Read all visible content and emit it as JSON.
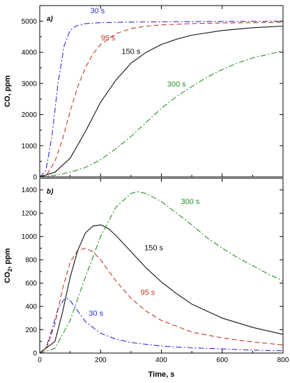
{
  "chart_data": [
    {
      "type": "line",
      "panel_label": "a)",
      "xlabel": "",
      "ylabel": "CO, ppm",
      "xlim": [
        0,
        800
      ],
      "ylim": [
        0,
        5500
      ],
      "x_ticks": [
        0,
        200,
        400,
        600,
        800
      ],
      "y_ticks": [
        0,
        1000,
        2000,
        3000,
        4000,
        5000
      ],
      "grid": false,
      "series": [
        {
          "name": "30 s",
          "color": "#2b2bd4",
          "dash": "dashdot",
          "x": [
            0,
            20,
            40,
            60,
            80,
            100,
            120,
            150,
            200,
            300,
            400,
            600,
            800
          ],
          "y": [
            0,
            200,
            1300,
            3000,
            4200,
            4700,
            4850,
            4920,
            4950,
            4970,
            4980,
            4990,
            5000
          ]
        },
        {
          "name": "95 s",
          "color": "#c0392b",
          "dash": "dashed",
          "x": [
            0,
            25,
            50,
            75,
            100,
            125,
            150,
            175,
            200,
            250,
            300,
            350,
            400,
            500,
            600,
            700,
            800
          ],
          "y": [
            0,
            100,
            500,
            1200,
            2100,
            2900,
            3500,
            3950,
            4250,
            4600,
            4760,
            4840,
            4880,
            4920,
            4940,
            4950,
            4960
          ]
        },
        {
          "name": "150 s",
          "color": "#111111",
          "dash": "solid",
          "x": [
            0,
            50,
            100,
            150,
            200,
            250,
            300,
            350,
            400,
            450,
            500,
            600,
            700,
            800
          ],
          "y": [
            0,
            150,
            600,
            1450,
            2400,
            3100,
            3650,
            4000,
            4250,
            4420,
            4550,
            4700,
            4790,
            4840
          ]
        },
        {
          "name": "300 s",
          "color": "#2a8c2a",
          "dash": "dashdot",
          "x": [
            0,
            50,
            100,
            150,
            200,
            250,
            300,
            350,
            400,
            450,
            500,
            550,
            600,
            650,
            700,
            750,
            800
          ],
          "y": [
            0,
            50,
            150,
            300,
            550,
            900,
            1300,
            1750,
            2200,
            2580,
            2900,
            3200,
            3450,
            3650,
            3820,
            3930,
            4050
          ]
        }
      ],
      "curve_labels": [
        {
          "text": "30 s",
          "x": 190,
          "y": 5250
        },
        {
          "text": "95 s",
          "x": 225,
          "y": 4380
        },
        {
          "text": "150 s",
          "x": 300,
          "y": 3950
        },
        {
          "text": "300 s",
          "x": 450,
          "y": 2900
        }
      ]
    },
    {
      "type": "line",
      "panel_label": "b)",
      "xlabel": "Time, s",
      "ylabel": "CO2, ppm",
      "xlim": [
        0,
        800
      ],
      "ylim": [
        0,
        1500
      ],
      "x_ticks": [
        0,
        200,
        400,
        600,
        800
      ],
      "y_ticks": [
        0,
        200,
        400,
        600,
        800,
        1000,
        1200,
        1400
      ],
      "grid": false,
      "series": [
        {
          "name": "30 s",
          "color": "#2b2bd4",
          "dash": "dashdot",
          "x": [
            0,
            20,
            40,
            60,
            80,
            90,
            100,
            120,
            150,
            200,
            250,
            300,
            400,
            500,
            600,
            700,
            800
          ],
          "y": [
            0,
            40,
            200,
            380,
            460,
            470,
            450,
            380,
            270,
            170,
            120,
            90,
            60,
            45,
            35,
            25,
            20
          ]
        },
        {
          "name": "95 s",
          "color": "#c0392b",
          "dash": "dashed",
          "x": [
            0,
            25,
            50,
            75,
            100,
            125,
            150,
            175,
            200,
            250,
            300,
            350,
            400,
            500,
            600,
            700,
            800
          ],
          "y": [
            0,
            60,
            250,
            550,
            780,
            880,
            900,
            870,
            800,
            620,
            470,
            360,
            280,
            180,
            130,
            95,
            70
          ]
        },
        {
          "name": "150 s",
          "color": "#111111",
          "dash": "solid",
          "x": [
            0,
            50,
            75,
            100,
            125,
            150,
            175,
            200,
            225,
            250,
            300,
            350,
            400,
            450,
            500,
            600,
            700,
            800
          ],
          "y": [
            0,
            100,
            350,
            650,
            880,
            1030,
            1090,
            1100,
            1070,
            1010,
            870,
            730,
            610,
            510,
            420,
            300,
            220,
            160
          ]
        },
        {
          "name": "300 s",
          "color": "#2a8c2a",
          "dash": "dashdot",
          "x": [
            0,
            50,
            100,
            150,
            200,
            250,
            300,
            320,
            350,
            400,
            450,
            500,
            550,
            600,
            650,
            700,
            750,
            800
          ],
          "y": [
            0,
            40,
            280,
            650,
            1000,
            1250,
            1370,
            1385,
            1370,
            1300,
            1200,
            1100,
            990,
            900,
            820,
            750,
            680,
            620
          ]
        }
      ],
      "curve_labels": [
        {
          "text": "30 s",
          "x": 185,
          "y": 320
        },
        {
          "text": "95 s",
          "x": 355,
          "y": 500
        },
        {
          "text": "150 s",
          "x": 375,
          "y": 880
        },
        {
          "text": "300 s",
          "x": 495,
          "y": 1280
        }
      ]
    }
  ]
}
